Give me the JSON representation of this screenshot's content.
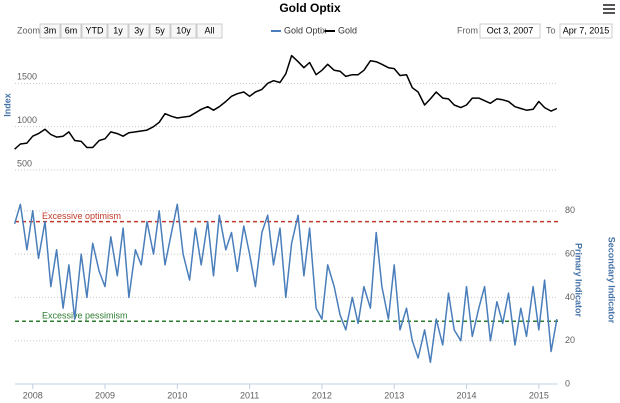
{
  "title": "Gold Optix",
  "toolbar": {
    "zoom_label": "Zoom",
    "buttons": [
      "3m",
      "6m",
      "YTD",
      "1y",
      "3y",
      "5y",
      "10y",
      "All"
    ],
    "from_label": "From",
    "from": "Oct 3, 2007",
    "to_label": "To",
    "to": "Apr 7, 2015"
  },
  "chart_data": [
    {
      "type": "line",
      "y_label": "Index",
      "x": [
        2007.75,
        2007.83,
        2007.92,
        2008.0,
        2008.08,
        2008.17,
        2008.25,
        2008.33,
        2008.42,
        2008.5,
        2008.58,
        2008.67,
        2008.75,
        2008.83,
        2008.92,
        2009.0,
        2009.08,
        2009.17,
        2009.25,
        2009.33,
        2009.42,
        2009.5,
        2009.58,
        2009.67,
        2009.75,
        2009.83,
        2009.92,
        2010.0,
        2010.08,
        2010.17,
        2010.25,
        2010.33,
        2010.42,
        2010.5,
        2010.58,
        2010.67,
        2010.75,
        2010.83,
        2010.92,
        2011.0,
        2011.08,
        2011.17,
        2011.25,
        2011.33,
        2011.42,
        2011.5,
        2011.58,
        2011.67,
        2011.75,
        2011.83,
        2011.92,
        2012.0,
        2012.08,
        2012.17,
        2012.25,
        2012.33,
        2012.42,
        2012.5,
        2012.58,
        2012.67,
        2012.75,
        2012.83,
        2012.92,
        2013.0,
        2013.08,
        2013.17,
        2013.25,
        2013.33,
        2013.42,
        2013.5,
        2013.58,
        2013.67,
        2013.75,
        2013.83,
        2013.92,
        2014.0,
        2014.08,
        2014.17,
        2014.25,
        2014.33,
        2014.42,
        2014.5,
        2014.58,
        2014.67,
        2014.75,
        2014.83,
        2014.92,
        2015.0,
        2015.08,
        2015.17,
        2015.25
      ],
      "series": [
        {
          "name": "Gold",
          "color": "#000000",
          "values": [
            740,
            800,
            810,
            890,
            920,
            970,
            910,
            880,
            890,
            940,
            840,
            830,
            760,
            760,
            840,
            860,
            940,
            920,
            890,
            930,
            940,
            950,
            960,
            1000,
            1050,
            1150,
            1120,
            1100,
            1110,
            1120,
            1160,
            1200,
            1230,
            1190,
            1230,
            1290,
            1350,
            1380,
            1400,
            1350,
            1400,
            1430,
            1500,
            1530,
            1510,
            1610,
            1820,
            1750,
            1680,
            1740,
            1600,
            1650,
            1720,
            1650,
            1640,
            1580,
            1600,
            1600,
            1650,
            1760,
            1750,
            1720,
            1680,
            1670,
            1590,
            1600,
            1450,
            1400,
            1250,
            1320,
            1400,
            1330,
            1320,
            1250,
            1220,
            1250,
            1330,
            1330,
            1300,
            1270,
            1320,
            1310,
            1290,
            1230,
            1210,
            1190,
            1200,
            1290,
            1220,
            1180,
            1210
          ]
        }
      ],
      "xlim": [
        2007.755,
        2015.265
      ],
      "ylim": [
        500,
        2000
      ],
      "yticks": [
        500,
        1000,
        1500
      ],
      "grid": true
    },
    {
      "type": "line",
      "y_label": "Primary Indicator",
      "y2_label": "Secondary Indicator",
      "x": [
        2007.75,
        2007.83,
        2007.92,
        2008.0,
        2008.08,
        2008.17,
        2008.25,
        2008.33,
        2008.42,
        2008.5,
        2008.58,
        2008.67,
        2008.75,
        2008.83,
        2008.92,
        2009.0,
        2009.08,
        2009.17,
        2009.25,
        2009.33,
        2009.42,
        2009.5,
        2009.58,
        2009.67,
        2009.75,
        2009.83,
        2009.92,
        2010.0,
        2010.08,
        2010.17,
        2010.25,
        2010.33,
        2010.42,
        2010.5,
        2010.58,
        2010.67,
        2010.75,
        2010.83,
        2010.92,
        2011.0,
        2011.08,
        2011.17,
        2011.25,
        2011.33,
        2011.42,
        2011.5,
        2011.58,
        2011.67,
        2011.75,
        2011.83,
        2011.92,
        2012.0,
        2012.08,
        2012.17,
        2012.25,
        2012.33,
        2012.42,
        2012.5,
        2012.58,
        2012.67,
        2012.75,
        2012.83,
        2012.92,
        2013.0,
        2013.08,
        2013.17,
        2013.25,
        2013.33,
        2013.42,
        2013.5,
        2013.58,
        2013.67,
        2013.75,
        2013.83,
        2013.92,
        2014.0,
        2014.08,
        2014.17,
        2014.25,
        2014.33,
        2014.42,
        2014.5,
        2014.58,
        2014.67,
        2014.75,
        2014.83,
        2014.92,
        2015.0,
        2015.08,
        2015.17,
        2015.25
      ],
      "series": [
        {
          "name": "Gold Optix",
          "color": "#4a7ebb",
          "values": [
            74,
            83,
            62,
            80,
            58,
            75,
            45,
            62,
            35,
            55,
            30,
            60,
            40,
            65,
            52,
            45,
            68,
            50,
            72,
            40,
            62,
            55,
            75,
            60,
            80,
            55,
            70,
            83,
            60,
            48,
            72,
            55,
            75,
            50,
            78,
            62,
            70,
            52,
            73,
            60,
            45,
            70,
            78,
            55,
            72,
            40,
            65,
            78,
            50,
            72,
            35,
            30,
            55,
            45,
            32,
            25,
            40,
            28,
            45,
            35,
            70,
            45,
            30,
            55,
            25,
            35,
            20,
            12,
            25,
            10,
            30,
            18,
            42,
            25,
            20,
            45,
            22,
            35,
            45,
            20,
            38,
            28,
            42,
            18,
            35,
            22,
            45,
            25,
            48,
            15,
            30
          ]
        }
      ],
      "thresholds": [
        {
          "label": "Excessive optimism",
          "value": 75,
          "color": "#c0392b"
        },
        {
          "label": "Excessive pessimism",
          "value": 29,
          "color": "#2e7d32"
        }
      ],
      "xlim": [
        2007.755,
        2015.265
      ],
      "xticks": [
        2008,
        2009,
        2010,
        2011,
        2012,
        2013,
        2014,
        2015
      ],
      "ylim": [
        0,
        85
      ],
      "yticks": [
        0,
        20,
        40,
        60,
        80
      ],
      "grid": true
    }
  ]
}
